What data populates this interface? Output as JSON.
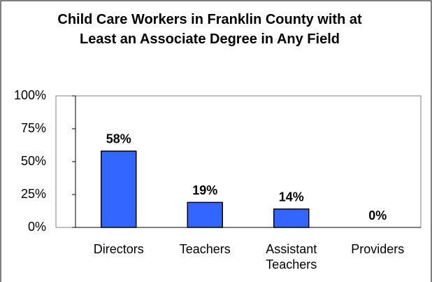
{
  "chart_data": {
    "type": "bar",
    "title": "Child Care Workers in Franklin County with at Least an Associate Degree in Any Field",
    "categories": [
      "Directors",
      "Teachers",
      "Assistant Teachers",
      "Providers"
    ],
    "values": [
      58,
      19,
      14,
      0
    ],
    "value_labels": [
      "58%",
      "19%",
      "14%",
      "0%"
    ],
    "color": "#3366ff",
    "ylim": [
      0,
      100
    ],
    "yticks": [
      {
        "value": 0,
        "label": "0%"
      },
      {
        "value": 25,
        "label": "25%"
      },
      {
        "value": 50,
        "label": "50%"
      },
      {
        "value": 75,
        "label": "75%"
      },
      {
        "value": 100,
        "label": "100%"
      }
    ]
  }
}
